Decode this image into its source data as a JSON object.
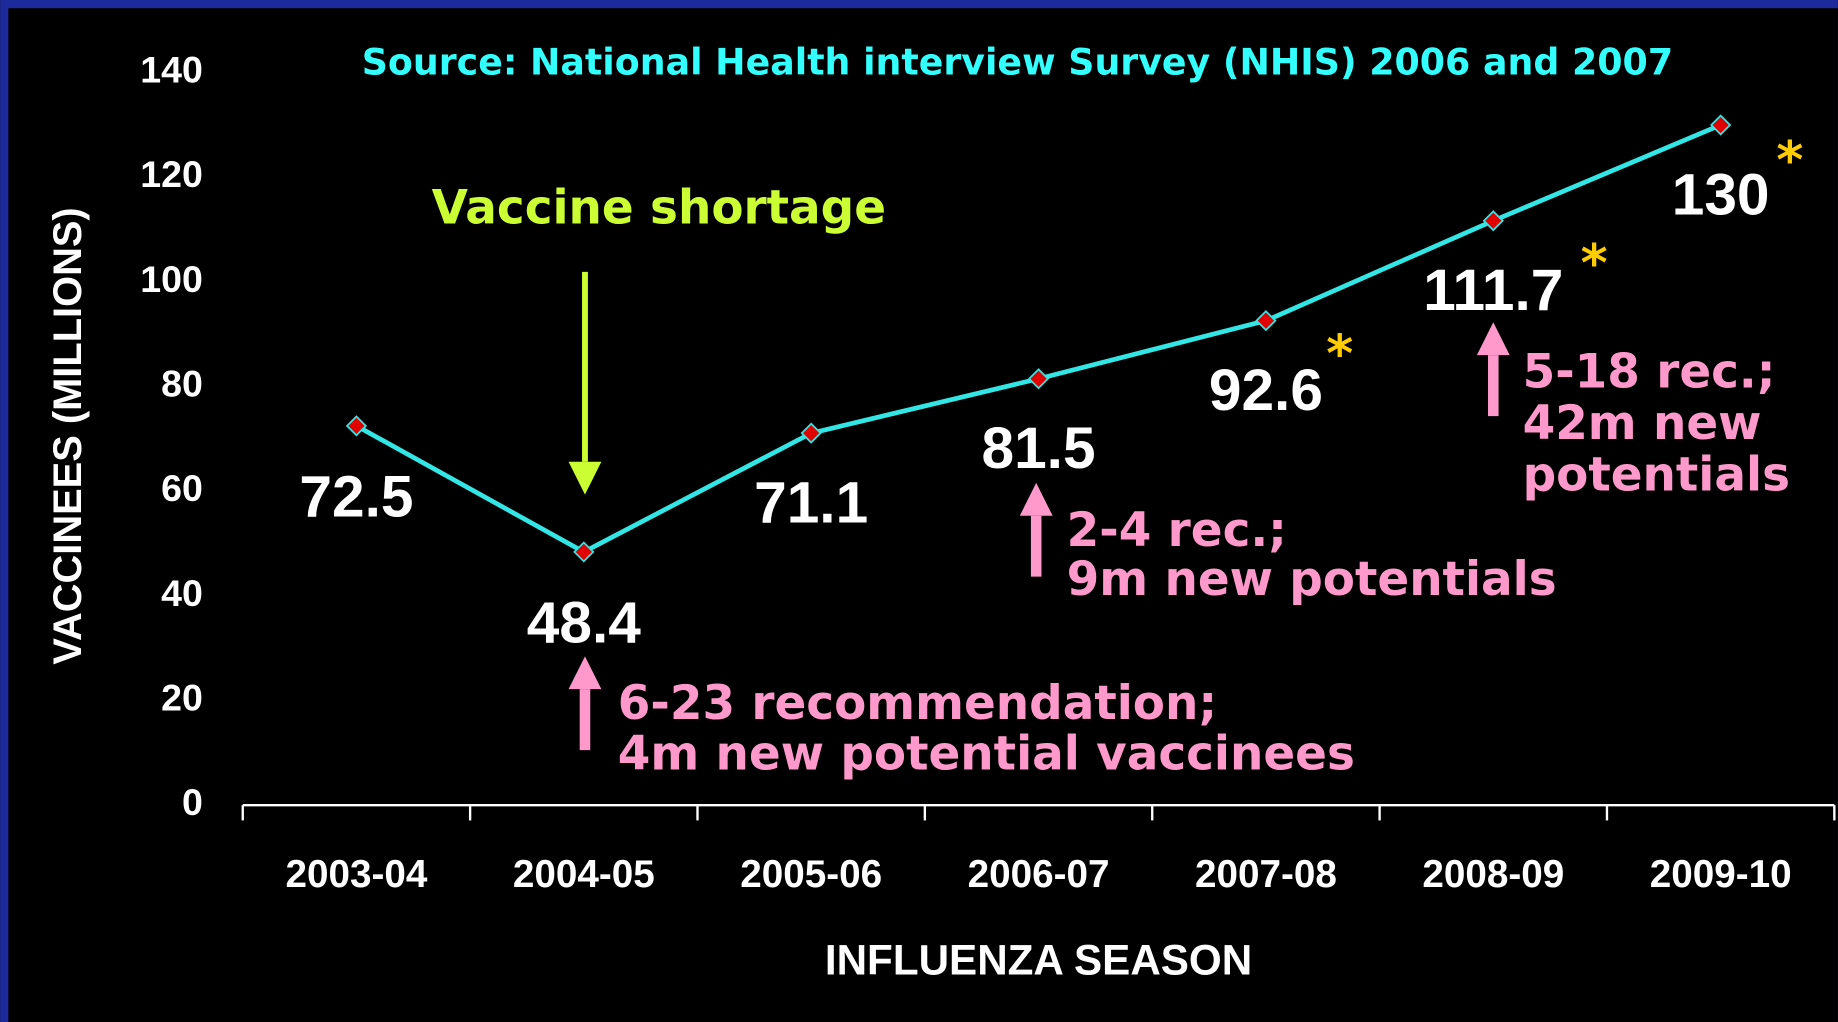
{
  "chart_data": {
    "type": "line",
    "subtitle": "Source: National Health interview Survey (NHIS) 2006 and 2007",
    "x_label": "INFLUENZA SEASON",
    "y_label": "VACCINEES (MILLIONS)",
    "categories": [
      "2003-04",
      "2004-05",
      "2005-06",
      "2006-07",
      "2007-08",
      "2008-09",
      "2009-10"
    ],
    "series": [
      {
        "name": "Vaccinees",
        "color": "#33e6e6",
        "values": [
          72.5,
          48.4,
          71.1,
          81.5,
          92.6,
          111.7,
          130
        ]
      }
    ],
    "marker_color": "#e00000",
    "ylim": [
      0,
      140
    ],
    "yticks": [
      0,
      20,
      40,
      60,
      80,
      100,
      120,
      140
    ],
    "grid": false,
    "annotations": [
      {
        "lines": [
          "Vaccine shortage"
        ],
        "color": "#ccff33"
      },
      {
        "lines": [
          "6-23 recommendation;",
          "4m new potential vaccinees"
        ],
        "color": "#ff99cc"
      },
      {
        "lines": [
          "2-4 rec.;",
          "9m new potentials"
        ],
        "color": "#ff99cc"
      },
      {
        "lines": [
          "5-18 rec.;",
          "42m new",
          "potentials"
        ],
        "color": "#ff99cc"
      },
      {
        "lines": [
          "*"
        ],
        "color": "#ffcc00"
      },
      {
        "lines": [
          "*"
        ],
        "color": "#ffcc00"
      },
      {
        "lines": [
          "*"
        ],
        "color": "#ffcc00"
      }
    ]
  }
}
